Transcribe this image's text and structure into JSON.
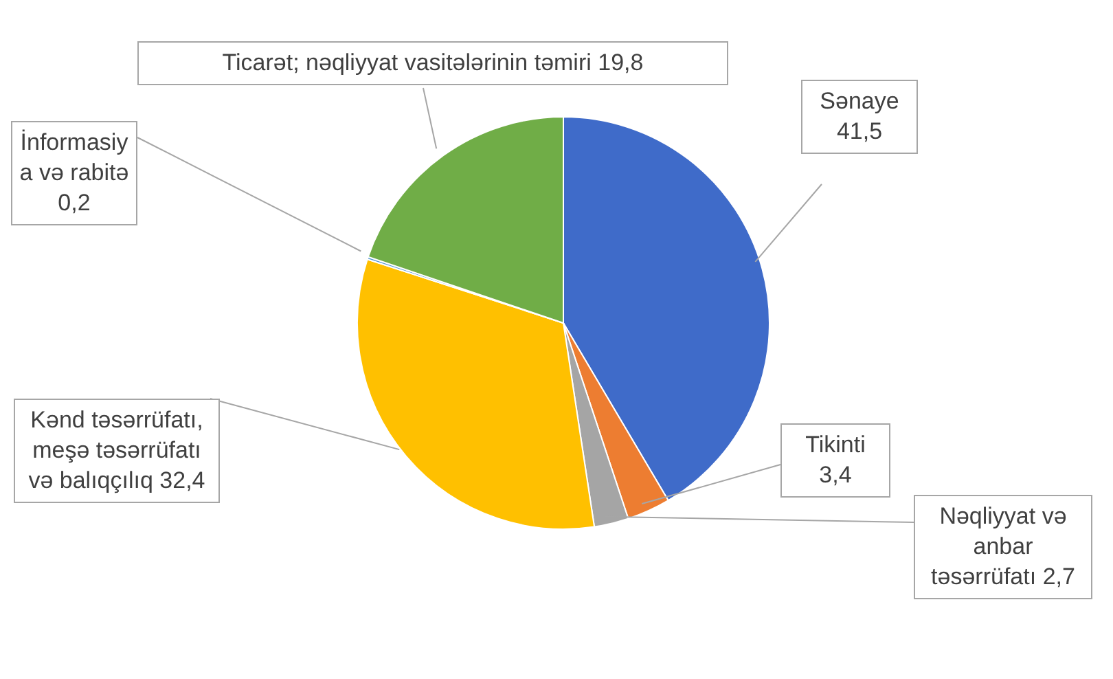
{
  "chart_data": {
    "type": "pie",
    "categories": [
      "Sənaye",
      "Tikinti",
      "Nəqliyyat və anbar təsərrüfatı",
      "Kənd təsərrüfatı, meşə təsərrüfatı və balıqçılıq",
      "İnformasiya və rabitə",
      "Ticarət; nəqliyyat vasitələrinin təmiri"
    ],
    "values": [
      41.5,
      3.4,
      2.7,
      32.4,
      0.2,
      19.8
    ],
    "colors": [
      "#3f6bc9",
      "#ed7d31",
      "#a5a5a5",
      "#ffc000",
      "#5b9bd5",
      "#70ad47"
    ],
    "value_labels": [
      "41,5",
      "3,4",
      "2,7",
      "32,4",
      "0,2",
      "19,8"
    ]
  }
}
